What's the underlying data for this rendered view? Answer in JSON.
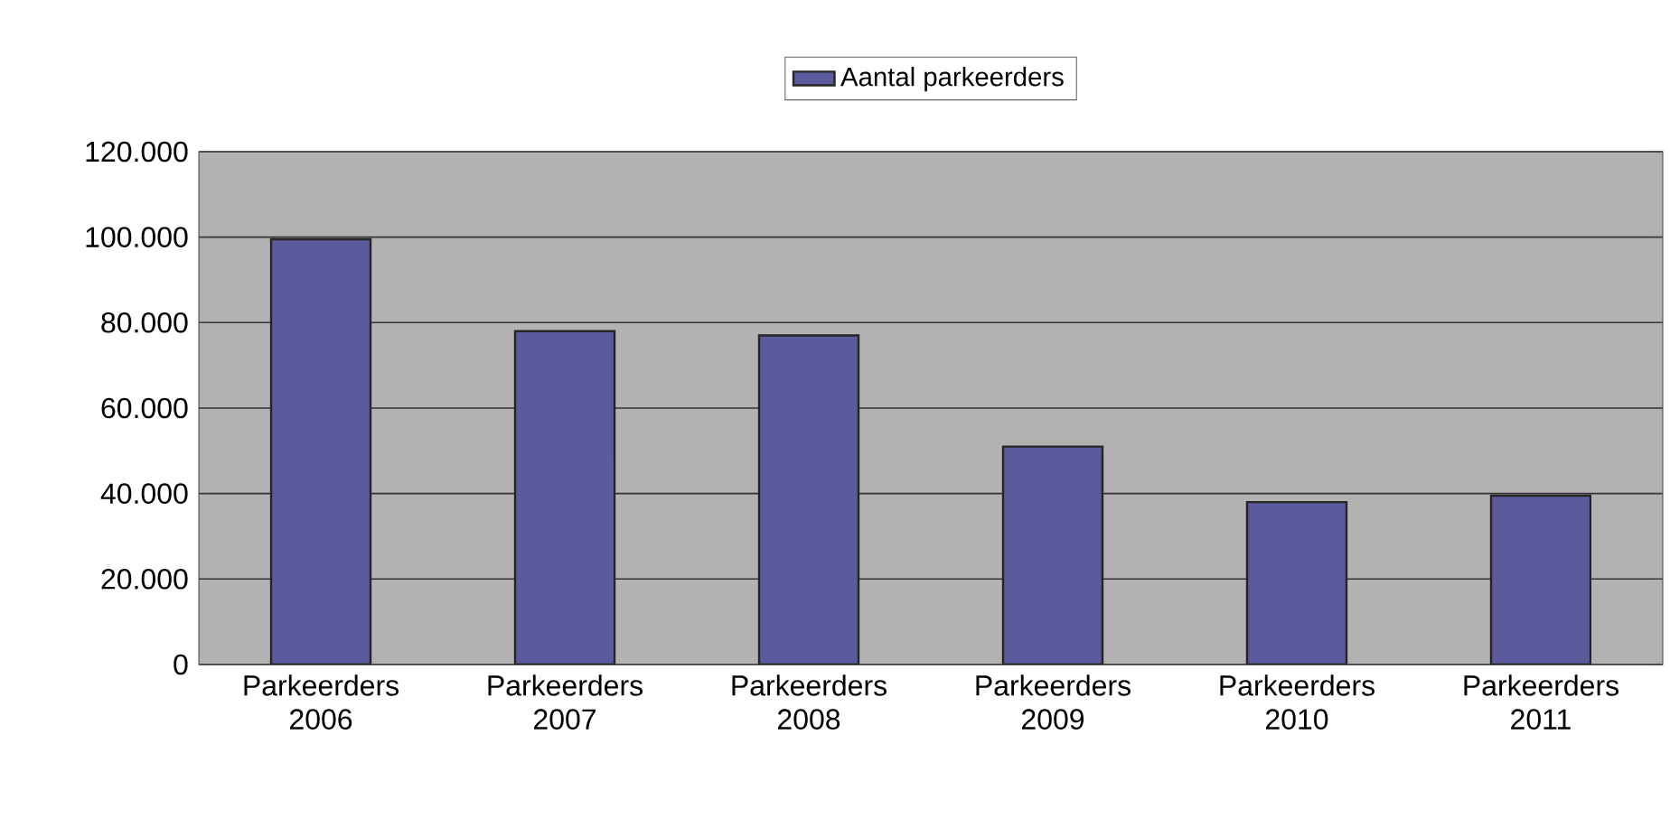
{
  "chart_data": {
    "type": "bar",
    "categories": [
      "Parkeerders 2006",
      "Parkeerders 2007",
      "Parkeerders 2008",
      "Parkeerders 2009",
      "Parkeerders 2010",
      "Parkeerders 2011"
    ],
    "series": [
      {
        "name": "Aantal parkeerders",
        "color": "#5a5a9c",
        "values": [
          99500,
          78000,
          77000,
          51000,
          38000,
          39500
        ]
      }
    ],
    "ylim": [
      0,
      120000
    ],
    "yticks": [
      {
        "value": 0,
        "label": "0"
      },
      {
        "value": 20000,
        "label": "20.000"
      },
      {
        "value": 40000,
        "label": "40.000"
      },
      {
        "value": 60000,
        "label": "60.000"
      },
      {
        "value": 80000,
        "label": "80.000"
      },
      {
        "value": 100000,
        "label": "100.000"
      },
      {
        "value": 120000,
        "label": "120.000"
      }
    ],
    "grid": "y",
    "legend": "top"
  }
}
